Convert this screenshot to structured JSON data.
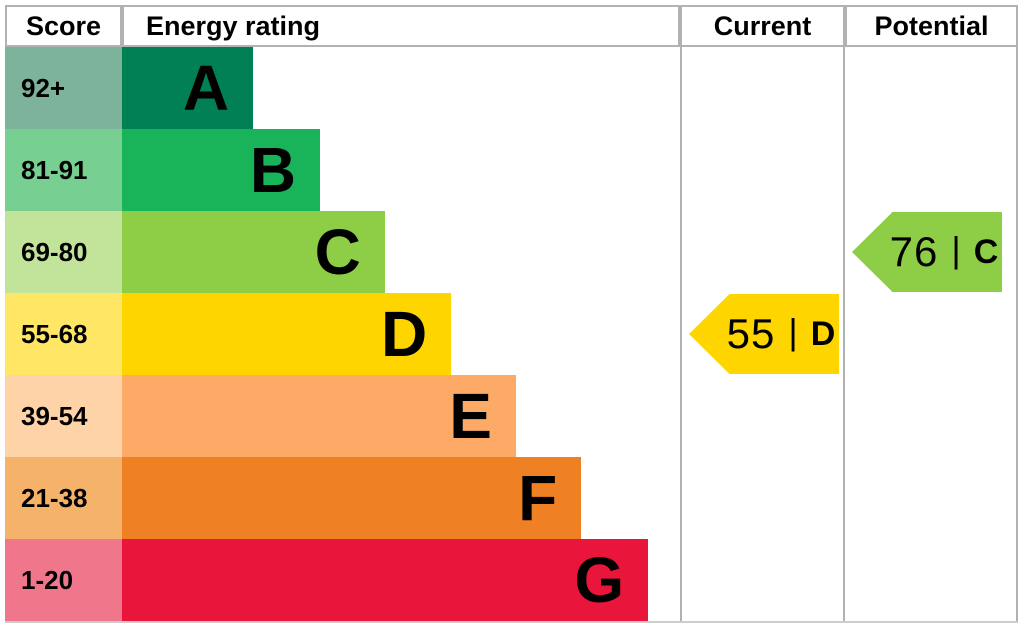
{
  "header": {
    "score": "Score",
    "energy_rating": "Energy rating",
    "current": "Current",
    "potential": "Potential"
  },
  "chart_data": {
    "type": "bar",
    "subtype": "epc-energy-rating-chart",
    "orientation": "horizontal",
    "bands": [
      {
        "letter": "A",
        "score_range": "92+",
        "color": "#008054",
        "score_bg": "#7eb39b",
        "width": "23.5%"
      },
      {
        "letter": "B",
        "score_range": "81-91",
        "color": "#19b459",
        "score_bg": "#77cf92",
        "width": "35.5%"
      },
      {
        "letter": "C",
        "score_range": "69-80",
        "color": "#8dce46",
        "score_bg": "#c2e49a",
        "width": "47.1%"
      },
      {
        "letter": "D",
        "score_range": "55-68",
        "color": "#ffd500",
        "score_bg": "#ffe664",
        "width": "59.0%"
      },
      {
        "letter": "E",
        "score_range": "39-54",
        "color": "#fcaa65",
        "score_bg": "#fdd3a7",
        "width": "70.6%"
      },
      {
        "letter": "F",
        "score_range": "21-38",
        "color": "#ef8023",
        "score_bg": "#f5b26b",
        "width": "82.3%"
      },
      {
        "letter": "G",
        "score_range": "1-20",
        "color": "#e9153b",
        "score_bg": "#f0768b",
        "width": "94.3%"
      }
    ],
    "current": {
      "value": "55",
      "separator": "|",
      "letter": "D",
      "color": "#ffd500",
      "band": "D"
    },
    "potential": {
      "value": "76",
      "separator": "|",
      "letter": "C",
      "color": "#8dce46",
      "band": "C"
    }
  }
}
